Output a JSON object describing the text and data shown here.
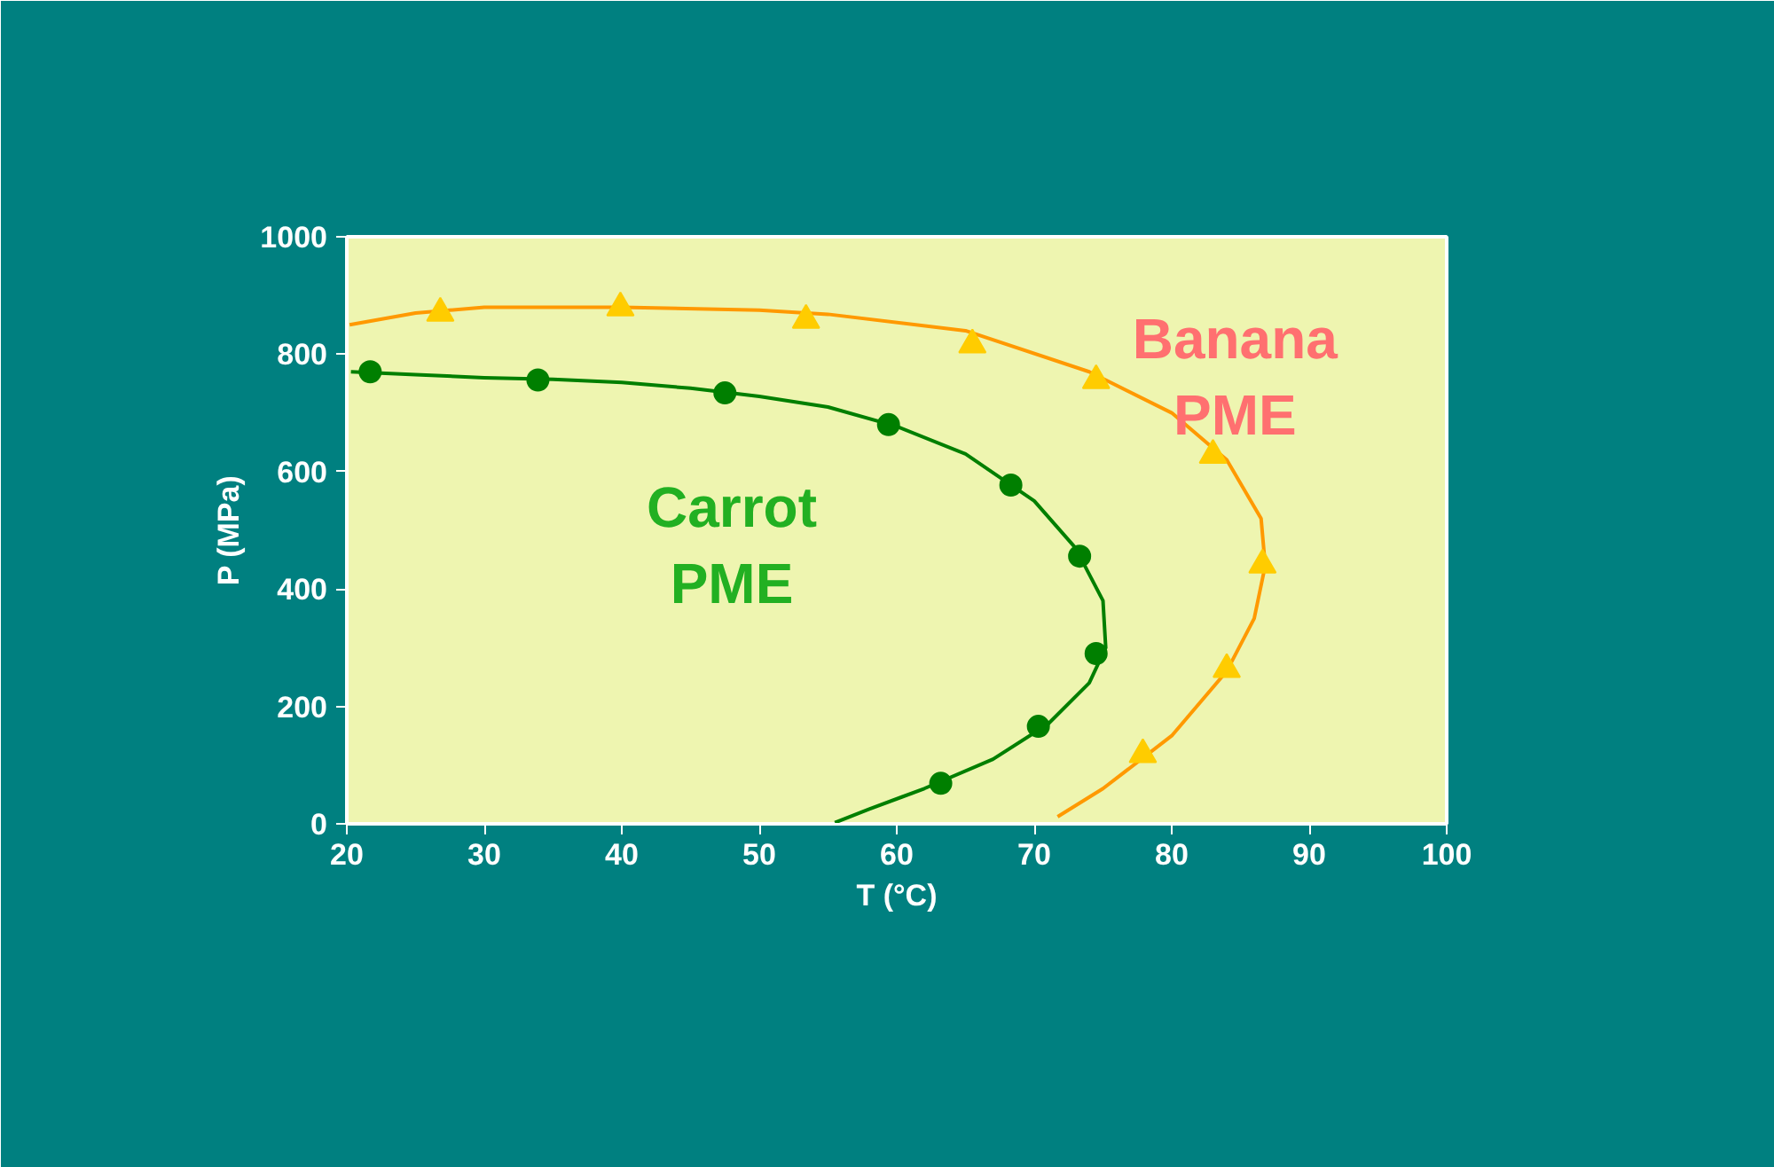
{
  "chart_data": {
    "type": "scatter",
    "xlabel": "T (°C)",
    "ylabel": "P (MPa)",
    "xlim": [
      20,
      100
    ],
    "ylim": [
      0,
      1000
    ],
    "xticks": [
      20,
      30,
      40,
      50,
      60,
      70,
      80,
      90,
      100
    ],
    "yticks": [
      0,
      200,
      400,
      600,
      800,
      1000
    ],
    "grid": false,
    "series": [
      {
        "type": "line",
        "color": "#007f00",
        "x": [
          20.3,
          25,
          30,
          35,
          40,
          45,
          50,
          55,
          60,
          65,
          70,
          73,
          75,
          75.2,
          74,
          71,
          67,
          62,
          58,
          55.5
        ],
        "values": [
          770,
          765,
          760,
          757,
          752,
          742,
          728,
          710,
          677,
          630,
          550,
          470,
          380,
          300,
          240,
          170,
          110,
          60,
          25,
          2
        ]
      },
      {
        "type": "line",
        "color": "#ff9900",
        "x": [
          20.2,
          25,
          30,
          40,
          50,
          55,
          65,
          74,
          80,
          84,
          86.5,
          86.8,
          86,
          84,
          80,
          75,
          71.7
        ],
        "values": [
          850,
          870,
          880,
          880,
          875,
          868,
          840,
          770,
          700,
          620,
          520,
          440,
          350,
          260,
          150,
          60,
          12
        ]
      },
      {
        "name": "Carrot PME",
        "marker": "circle",
        "color": "#007f00",
        "x": [
          21.7,
          33.9,
          47.5,
          59.4,
          68.3,
          73.3,
          74.5,
          70.3,
          63.2
        ],
        "values": [
          770,
          756,
          734,
          680,
          577,
          456,
          290,
          166,
          69
        ]
      },
      {
        "name": "Banana PME",
        "marker": "triangle",
        "color": "#ffcc00",
        "x": [
          26.8,
          39.9,
          53.4,
          65.5,
          74.5,
          83.0,
          86.6,
          84.0,
          77.9
        ],
        "values": [
          870,
          879,
          858,
          816,
          755,
          628,
          441,
          263,
          118
        ]
      }
    ]
  }
}
